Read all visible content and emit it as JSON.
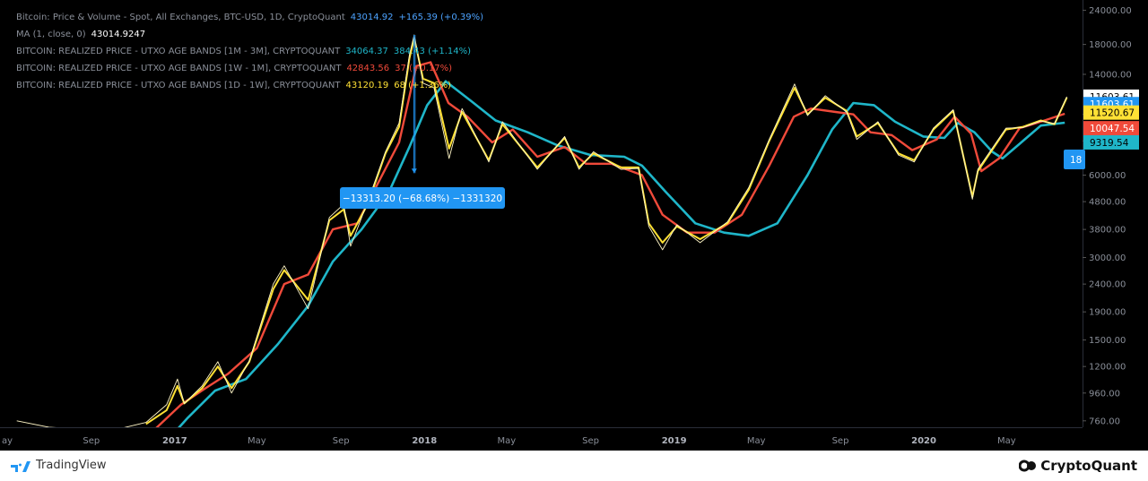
{
  "legend": [
    {
      "label": "Bitcoin: Price & Volume - Spot, All Exchanges, BTC-USD, 1D, CryptoQuant",
      "value": "43014.92",
      "change": "+165.39 (+0.39%)",
      "color": "#4da3ff"
    },
    {
      "label": "MA (1, close, 0)",
      "value": "43014.9247",
      "change": "",
      "color": "#ffffff"
    },
    {
      "label": "BITCOIN: REALIZED PRICE - UTXO AGE BANDS [1M - 3M], CRYPTOQUANT",
      "value": "34064.37",
      "change": "384.43 (+1.14%)",
      "color": "#1fb6c9"
    },
    {
      "label": "BITCOIN: REALIZED PRICE - UTXO AGE BANDS [1W - 1M], CRYPTOQUANT",
      "value": "42843.56",
      "change": "37 (+0.17%)",
      "color": "#f04a3a"
    },
    {
      "label": "BITCOIN: REALIZED PRICE - UTXO AGE BANDS [1D - 1W], CRYPTOQUANT",
      "value": "43120.19",
      "change": "68 (+1.36%)",
      "color": "#ffe135"
    }
  ],
  "measure_label": "−13313.20 (−68.68%) −1331320",
  "partial_badge": "18",
  "price_badges": [
    {
      "text": "11603.61",
      "bg": "#ffffff",
      "fg": "#000000",
      "price": 11603.61
    },
    {
      "text": "11603.61",
      "bg": "#2196f3",
      "fg": "#ffffff",
      "price": 10900
    },
    {
      "text": "11520.67",
      "bg": "#ffe135",
      "fg": "#000000",
      "price": 10150
    },
    {
      "text": "10047.54",
      "bg": "#f04a3a",
      "fg": "#ffffff",
      "price": 8900
    },
    {
      "text": "9319.54",
      "bg": "#1fb6c9",
      "fg": "#000000",
      "price": 7900
    }
  ],
  "footer": {
    "left": "TradingView",
    "right": "CryptoQuant"
  },
  "chart_data": {
    "type": "line",
    "y_scale": "log",
    "ylim": [
      720,
      25000
    ],
    "xlim": [
      "2016-05-01",
      "2020-08-20"
    ],
    "y_ticks": [
      24000,
      18000,
      14000,
      10000,
      8000,
      6000,
      4800,
      3800,
      3000,
      2400,
      1900,
      1500,
      1200,
      960,
      760
    ],
    "y_tick_labels": [
      "24000.00",
      "18000.00",
      "14000.00",
      "",
      "",
      "6000.00",
      "4800.00",
      "3800.00",
      "3000.00",
      "2400.00",
      "1900.00",
      "1500.00",
      "1200.00",
      "960.00",
      "760.00"
    ],
    "x_ticks": [
      {
        "date": "2016-05-01",
        "label": "ay"
      },
      {
        "date": "2016-09-01",
        "label": "Sep"
      },
      {
        "date": "2017-01-01",
        "label": "2017"
      },
      {
        "date": "2017-05-01",
        "label": "May"
      },
      {
        "date": "2017-09-01",
        "label": "Sep"
      },
      {
        "date": "2018-01-01",
        "label": "2018"
      },
      {
        "date": "2018-05-01",
        "label": "May"
      },
      {
        "date": "2018-09-01",
        "label": "Sep"
      },
      {
        "date": "2019-01-01",
        "label": "2019"
      },
      {
        "date": "2019-05-01",
        "label": "May"
      },
      {
        "date": "2019-09-01",
        "label": "Sep"
      },
      {
        "date": "2020-01-01",
        "label": "2020"
      },
      {
        "date": "2020-05-01",
        "label": "May"
      }
    ],
    "series": [
      {
        "name": "BITCOIN: REALIZED PRICE - UTXO AGE BANDS [1M - 3M], CRYPTOQUANT",
        "color": "#1fb6c9",
        "points": [
          [
            "2016-12-15",
            620
          ],
          [
            "2017-01-20",
            780
          ],
          [
            "2017-03-01",
            980
          ],
          [
            "2017-04-15",
            1080
          ],
          [
            "2017-06-01",
            1450
          ],
          [
            "2017-07-15",
            2000
          ],
          [
            "2017-08-20",
            2900
          ],
          [
            "2017-10-01",
            3800
          ],
          [
            "2017-11-10",
            5200
          ],
          [
            "2017-12-10",
            7600
          ],
          [
            "2018-01-05",
            10800
          ],
          [
            "2018-02-01",
            13200
          ],
          [
            "2018-03-10",
            11200
          ],
          [
            "2018-04-15",
            9500
          ],
          [
            "2018-06-01",
            8600
          ],
          [
            "2018-07-15",
            7700
          ],
          [
            "2018-09-01",
            7100
          ],
          [
            "2018-10-20",
            7000
          ],
          [
            "2018-11-15",
            6500
          ],
          [
            "2018-12-20",
            5200
          ],
          [
            "2019-02-01",
            4000
          ],
          [
            "2019-03-15",
            3700
          ],
          [
            "2019-04-20",
            3600
          ],
          [
            "2019-06-01",
            4000
          ],
          [
            "2019-07-15",
            6000
          ],
          [
            "2019-08-20",
            8800
          ],
          [
            "2019-09-20",
            11000
          ],
          [
            "2019-10-20",
            10800
          ],
          [
            "2019-11-20",
            9400
          ],
          [
            "2019-12-31",
            8300
          ],
          [
            "2020-01-31",
            8200
          ],
          [
            "2020-02-20",
            9300
          ],
          [
            "2020-03-15",
            8600
          ],
          [
            "2020-04-10",
            7300
          ],
          [
            "2020-04-25",
            6900
          ],
          [
            "2020-05-20",
            7800
          ],
          [
            "2020-06-20",
            9100
          ],
          [
            "2020-07-25",
            9319.54
          ]
        ]
      },
      {
        "name": "BITCOIN: REALIZED PRICE - UTXO AGE BANDS [1W - 1M], CRYPTOQUANT",
        "color": "#f04a3a",
        "points": [
          [
            "2016-12-01",
            700
          ],
          [
            "2017-01-10",
            870
          ],
          [
            "2017-02-15",
            1000
          ],
          [
            "2017-03-20",
            1130
          ],
          [
            "2017-05-01",
            1400
          ],
          [
            "2017-06-10",
            2400
          ],
          [
            "2017-07-15",
            2600
          ],
          [
            "2017-08-20",
            3800
          ],
          [
            "2017-09-25",
            4000
          ],
          [
            "2017-10-25",
            5600
          ],
          [
            "2017-11-25",
            7900
          ],
          [
            "2017-12-20",
            15000
          ],
          [
            "2018-01-10",
            15500
          ],
          [
            "2018-02-05",
            11000
          ],
          [
            "2018-03-05",
            9800
          ],
          [
            "2018-04-10",
            7900
          ],
          [
            "2018-05-10",
            8800
          ],
          [
            "2018-06-15",
            7000
          ],
          [
            "2018-07-25",
            7600
          ],
          [
            "2018-08-25",
            6600
          ],
          [
            "2018-10-01",
            6600
          ],
          [
            "2018-11-15",
            6000
          ],
          [
            "2018-12-15",
            4300
          ],
          [
            "2019-01-20",
            3700
          ],
          [
            "2019-03-01",
            3700
          ],
          [
            "2019-04-10",
            4300
          ],
          [
            "2019-05-20",
            6500
          ],
          [
            "2019-06-25",
            9800
          ],
          [
            "2019-07-20",
            10500
          ],
          [
            "2019-08-25",
            10200
          ],
          [
            "2019-09-20",
            10000
          ],
          [
            "2019-10-15",
            8600
          ],
          [
            "2019-11-15",
            8400
          ],
          [
            "2019-12-15",
            7400
          ],
          [
            "2020-01-20",
            8100
          ],
          [
            "2020-02-15",
            9800
          ],
          [
            "2020-03-10",
            8500
          ],
          [
            "2020-03-25",
            6200
          ],
          [
            "2020-04-20",
            6900
          ],
          [
            "2020-05-20",
            8900
          ],
          [
            "2020-06-20",
            9400
          ],
          [
            "2020-07-25",
            10047.54
          ]
        ]
      },
      {
        "name": "BITCOIN: REALIZED PRICE - UTXO AGE BANDS [1D - 1W], CRYPTOQUANT",
        "color": "#ffe135",
        "points": [
          [
            "2016-11-20",
            740
          ],
          [
            "2016-12-20",
            830
          ],
          [
            "2017-01-05",
            1020
          ],
          [
            "2017-01-15",
            880
          ],
          [
            "2017-02-10",
            1000
          ],
          [
            "2017-03-05",
            1200
          ],
          [
            "2017-03-25",
            1000
          ],
          [
            "2017-04-20",
            1250
          ],
          [
            "2017-05-25",
            2300
          ],
          [
            "2017-06-10",
            2700
          ],
          [
            "2017-07-15",
            2100
          ],
          [
            "2017-08-15",
            4100
          ],
          [
            "2017-09-05",
            4500
          ],
          [
            "2017-09-15",
            3600
          ],
          [
            "2017-10-10",
            4700
          ],
          [
            "2017-11-05",
            7200
          ],
          [
            "2017-11-25",
            9000
          ],
          [
            "2017-12-10",
            16000
          ],
          [
            "2017-12-17",
            19000
          ],
          [
            "2017-12-30",
            13500
          ],
          [
            "2018-01-15",
            13000
          ],
          [
            "2018-02-06",
            7500
          ],
          [
            "2018-02-25",
            10200
          ],
          [
            "2018-04-05",
            6800
          ],
          [
            "2018-04-25",
            9200
          ],
          [
            "2018-06-15",
            6400
          ],
          [
            "2018-07-25",
            8200
          ],
          [
            "2018-08-15",
            6400
          ],
          [
            "2018-09-05",
            7200
          ],
          [
            "2018-10-15",
            6400
          ],
          [
            "2018-11-10",
            6400
          ],
          [
            "2018-11-25",
            4000
          ],
          [
            "2018-12-15",
            3400
          ],
          [
            "2019-01-05",
            3900
          ],
          [
            "2019-02-08",
            3500
          ],
          [
            "2019-03-20",
            4000
          ],
          [
            "2019-04-20",
            5300
          ],
          [
            "2019-05-20",
            8000
          ],
          [
            "2019-06-26",
            12500
          ],
          [
            "2019-07-15",
            10000
          ],
          [
            "2019-08-10",
            11500
          ],
          [
            "2019-09-10",
            10300
          ],
          [
            "2019-09-25",
            8300
          ],
          [
            "2019-10-26",
            9300
          ],
          [
            "2019-11-25",
            7200
          ],
          [
            "2019-12-18",
            6800
          ],
          [
            "2020-01-15",
            8800
          ],
          [
            "2020-02-13",
            10300
          ],
          [
            "2020-03-12",
            5000
          ],
          [
            "2020-03-20",
            6200
          ],
          [
            "2020-04-30",
            8800
          ],
          [
            "2020-05-25",
            9000
          ],
          [
            "2020-06-20",
            9500
          ],
          [
            "2020-07-10",
            9200
          ],
          [
            "2020-07-28",
            11520.67
          ]
        ]
      },
      {
        "name": "Bitcoin: Price & Volume - Spot, All Exchanges, BTC-USD, 1D, CryptoQuant",
        "color": "#fff6c7",
        "points": [
          [
            "2016-05-15",
            760
          ],
          [
            "2016-07-01",
            720
          ],
          [
            "2016-10-01",
            700
          ],
          [
            "2016-11-20",
            750
          ],
          [
            "2016-12-20",
            870
          ],
          [
            "2017-01-05",
            1080
          ],
          [
            "2017-01-15",
            880
          ],
          [
            "2017-02-10",
            1020
          ],
          [
            "2017-03-05",
            1250
          ],
          [
            "2017-03-25",
            960
          ],
          [
            "2017-04-20",
            1260
          ],
          [
            "2017-05-25",
            2400
          ],
          [
            "2017-06-10",
            2800
          ],
          [
            "2017-07-15",
            1950
          ],
          [
            "2017-08-15",
            4200
          ],
          [
            "2017-09-05",
            4700
          ],
          [
            "2017-09-15",
            3300
          ],
          [
            "2017-10-10",
            4800
          ],
          [
            "2017-11-05",
            7300
          ],
          [
            "2017-11-25",
            9300
          ],
          [
            "2017-12-10",
            16500
          ],
          [
            "2017-12-17",
            19500
          ],
          [
            "2017-12-30",
            13000
          ],
          [
            "2018-01-15",
            12500
          ],
          [
            "2018-02-06",
            6900
          ],
          [
            "2018-02-25",
            10500
          ],
          [
            "2018-04-05",
            6700
          ],
          [
            "2018-04-25",
            9400
          ],
          [
            "2018-06-15",
            6300
          ],
          [
            "2018-07-25",
            8300
          ],
          [
            "2018-08-15",
            6300
          ],
          [
            "2018-09-05",
            7300
          ],
          [
            "2018-10-15",
            6300
          ],
          [
            "2018-11-10",
            6350
          ],
          [
            "2018-11-25",
            3900
          ],
          [
            "2018-12-15",
            3200
          ],
          [
            "2019-01-05",
            3950
          ],
          [
            "2019-02-08",
            3400
          ],
          [
            "2019-03-20",
            4050
          ],
          [
            "2019-04-20",
            5400
          ],
          [
            "2019-05-20",
            8100
          ],
          [
            "2019-06-26",
            12900
          ],
          [
            "2019-07-15",
            9900
          ],
          [
            "2019-08-10",
            11700
          ],
          [
            "2019-09-10",
            10200
          ],
          [
            "2019-09-25",
            8100
          ],
          [
            "2019-10-26",
            9400
          ],
          [
            "2019-11-25",
            7100
          ],
          [
            "2019-12-18",
            6700
          ],
          [
            "2020-01-15",
            8900
          ],
          [
            "2020-02-13",
            10400
          ],
          [
            "2020-03-12",
            4900
          ],
          [
            "2020-03-20",
            6300
          ],
          [
            "2020-04-30",
            8900
          ],
          [
            "2020-05-25",
            8950
          ],
          [
            "2020-06-20",
            9450
          ],
          [
            "2020-07-10",
            9250
          ],
          [
            "2020-07-28",
            11603.61
          ]
        ]
      }
    ],
    "measure": {
      "from": [
        "2017-12-17",
        19500
      ],
      "to": [
        "2017-12-17",
        6100
      ]
    }
  }
}
